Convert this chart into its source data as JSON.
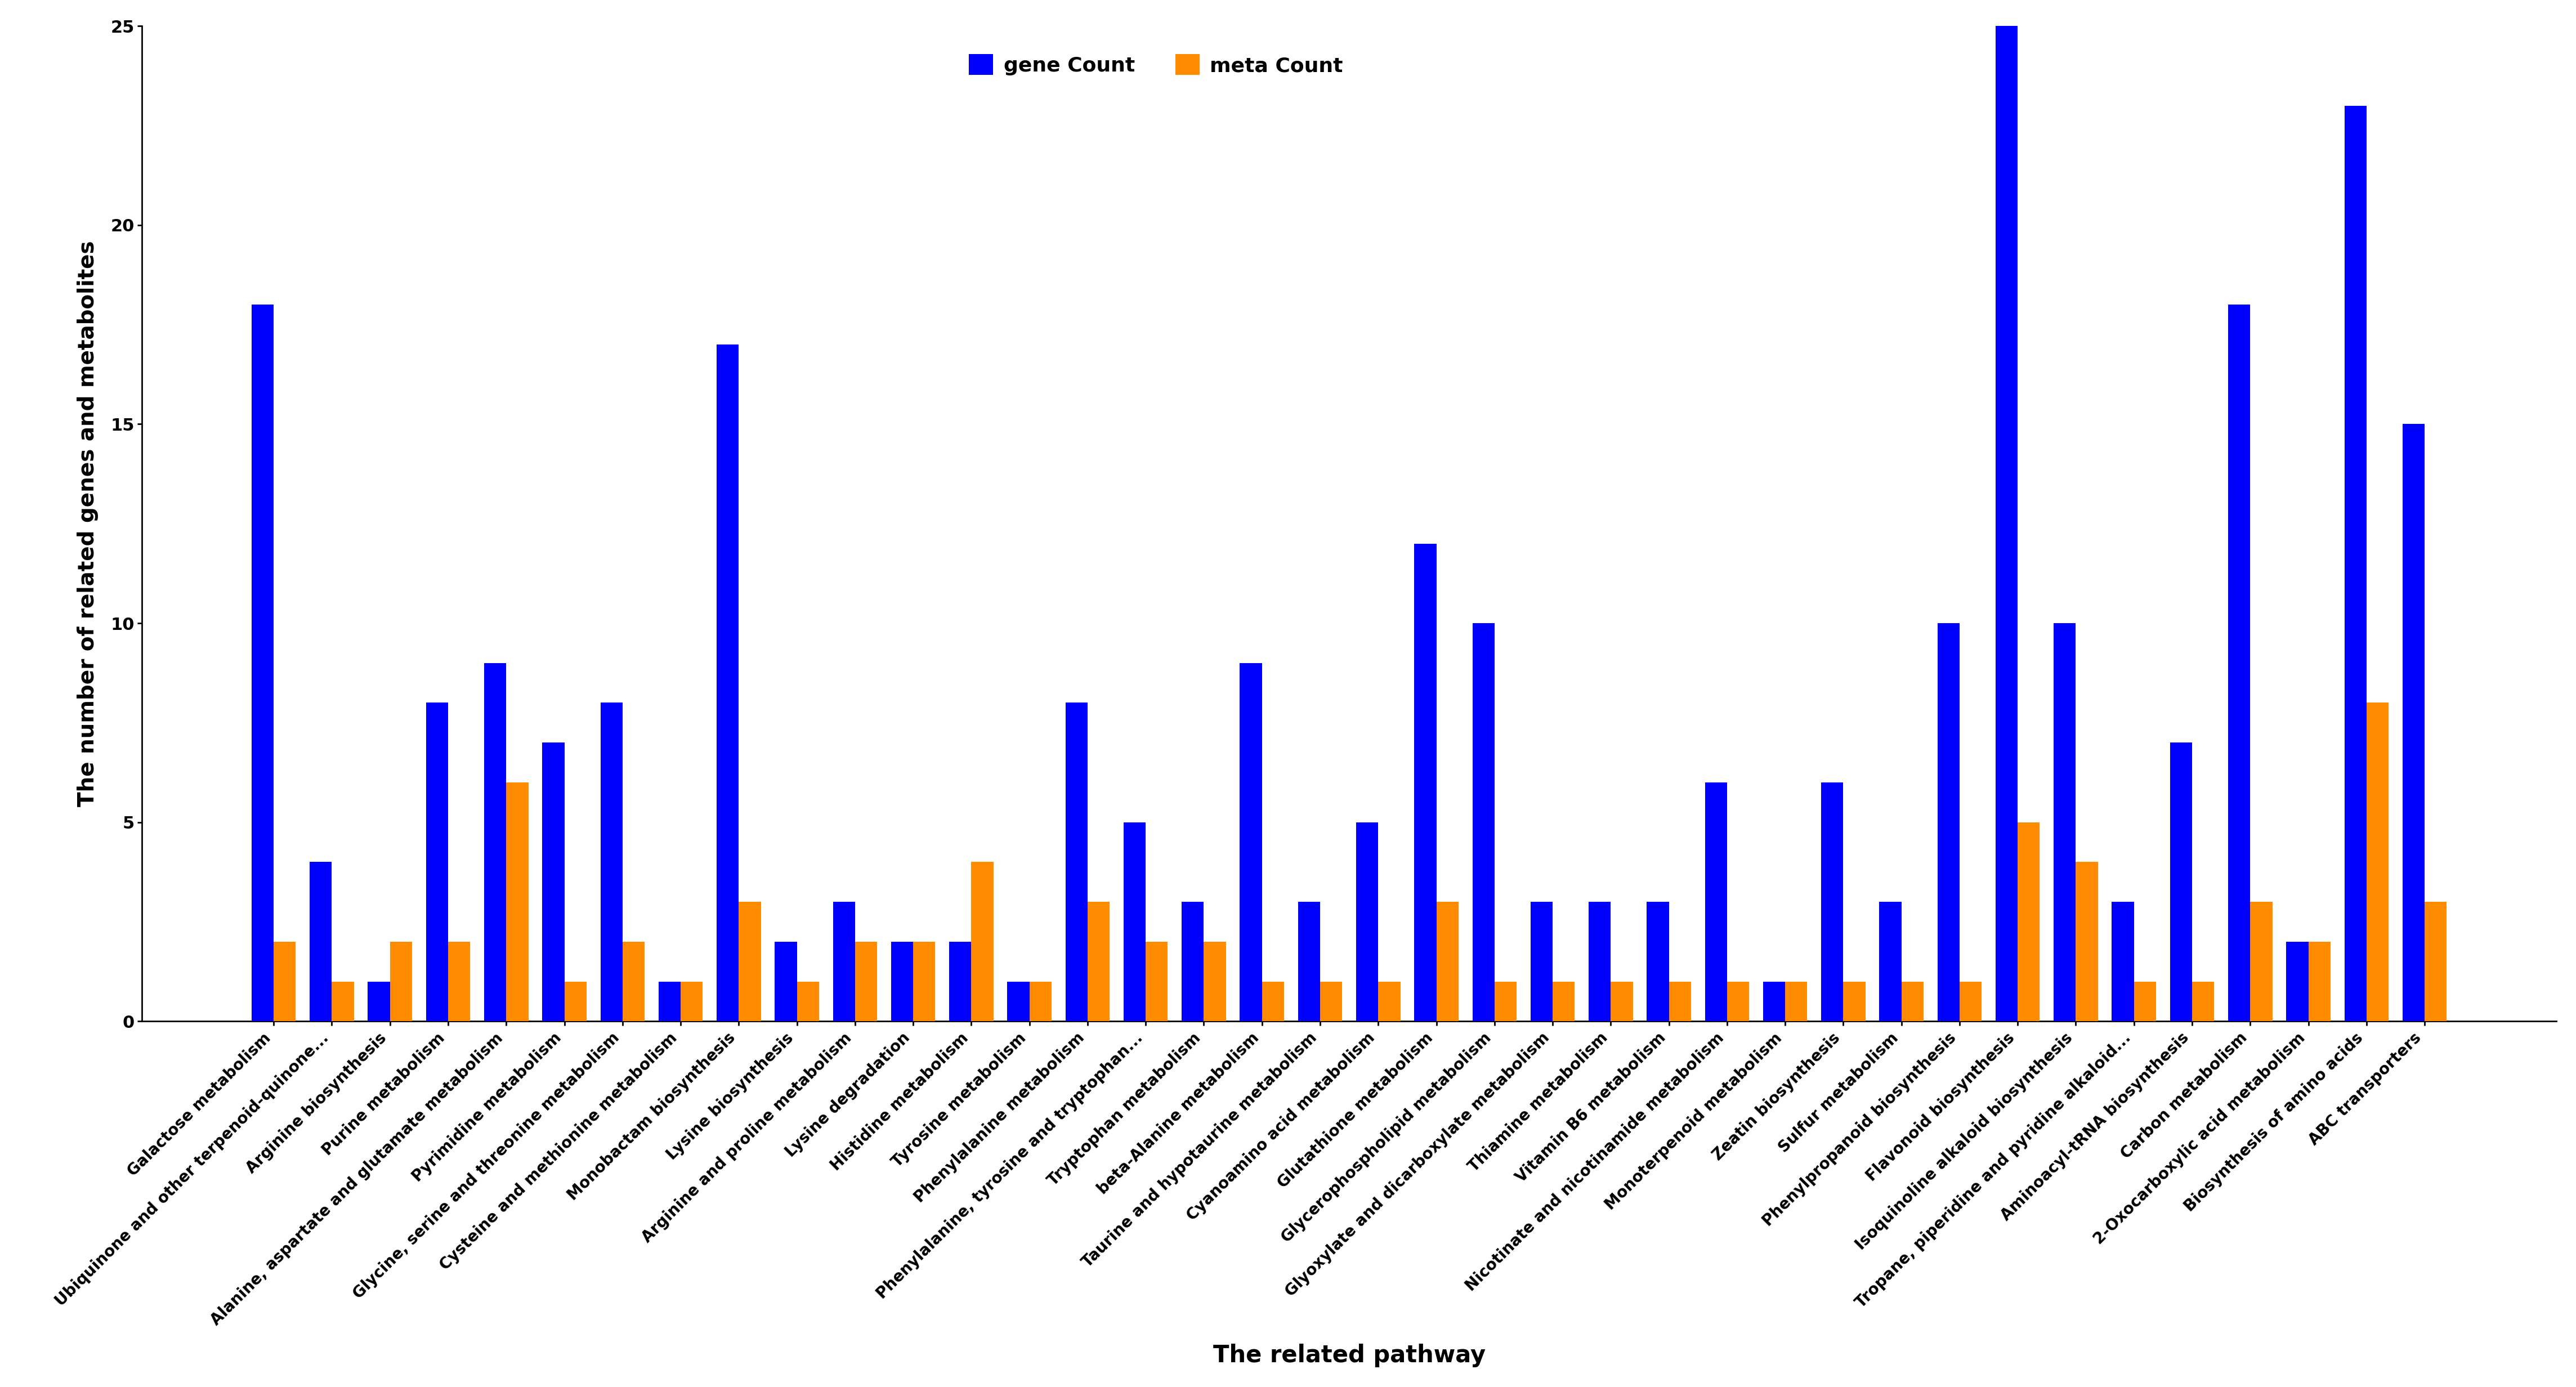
{
  "categories": [
    "Galactose metabolism",
    "Ubiquinone and other terpenoid-quinone...",
    "Arginine biosynthesis",
    "Purine metabolism",
    "Alanine, aspartate and glutamate metabolism",
    "Pyrimidine metabolism",
    "Glycine, serine and threonine metabolism",
    "Cysteine and methionine metabolism",
    "Monobactam biosynthesis",
    "Lysine biosynthesis",
    "Arginine and proline metabolism",
    "Lysine degradation",
    "Histidine metabolism",
    "Tyrosine metabolism",
    "Phenylalanine metabolism",
    "Phenylalanine, tyrosine and tryptophan...",
    "Tryptophan metabolism",
    "beta-Alanine metabolism",
    "Taurine and hypotaurine metabolism",
    "Cyanoamino acid metabolism",
    "Glutathione metabolism",
    "Glycerophospholipid metabolism",
    "Glyoxylate and dicarboxylate metabolism",
    "Thiamine metabolism",
    "Vitamin B6 metabolism",
    "Nicotinate and nicotinamide metabolism",
    "Monoterpenoid metabolism",
    "Zeatin biosynthesis",
    "Sulfur metabolism",
    "Phenylpropanoid biosynthesis",
    "Flavonoid biosynthesis",
    "Isoquinoline alkaloid biosynthesis",
    "Tropane, piperidine and pyridine alkaloid...",
    "Aminoacyl-tRNA biosynthesis",
    "Carbon metabolism",
    "2-Oxocarboxylic acid metabolism",
    "Biosynthesis of amino acids",
    "ABC transporters"
  ],
  "gene_counts": [
    18,
    4,
    1,
    8,
    9,
    7,
    8,
    1,
    17,
    2,
    3,
    2,
    2,
    1,
    8,
    5,
    3,
    9,
    3,
    5,
    12,
    10,
    3,
    3,
    3,
    6,
    1,
    6,
    3,
    10,
    25,
    10,
    3,
    7,
    18,
    2,
    23,
    15
  ],
  "meta_counts": [
    2,
    1,
    2,
    2,
    6,
    1,
    2,
    1,
    3,
    1,
    2,
    2,
    4,
    1,
    3,
    2,
    2,
    1,
    1,
    1,
    3,
    1,
    1,
    1,
    1,
    1,
    1,
    1,
    1,
    1,
    5,
    4,
    1,
    1,
    3,
    2,
    8,
    3
  ],
  "gene_color": "#0000FF",
  "meta_color": "#FF8C00",
  "ylabel": "The number of related genes and metabolites",
  "xlabel": "The related pathway",
  "ylim": [
    0,
    25
  ],
  "yticks": [
    0,
    5,
    10,
    15,
    20,
    25
  ],
  "legend_gene": "gene Count",
  "legend_meta": "meta Count",
  "bar_width": 0.38
}
